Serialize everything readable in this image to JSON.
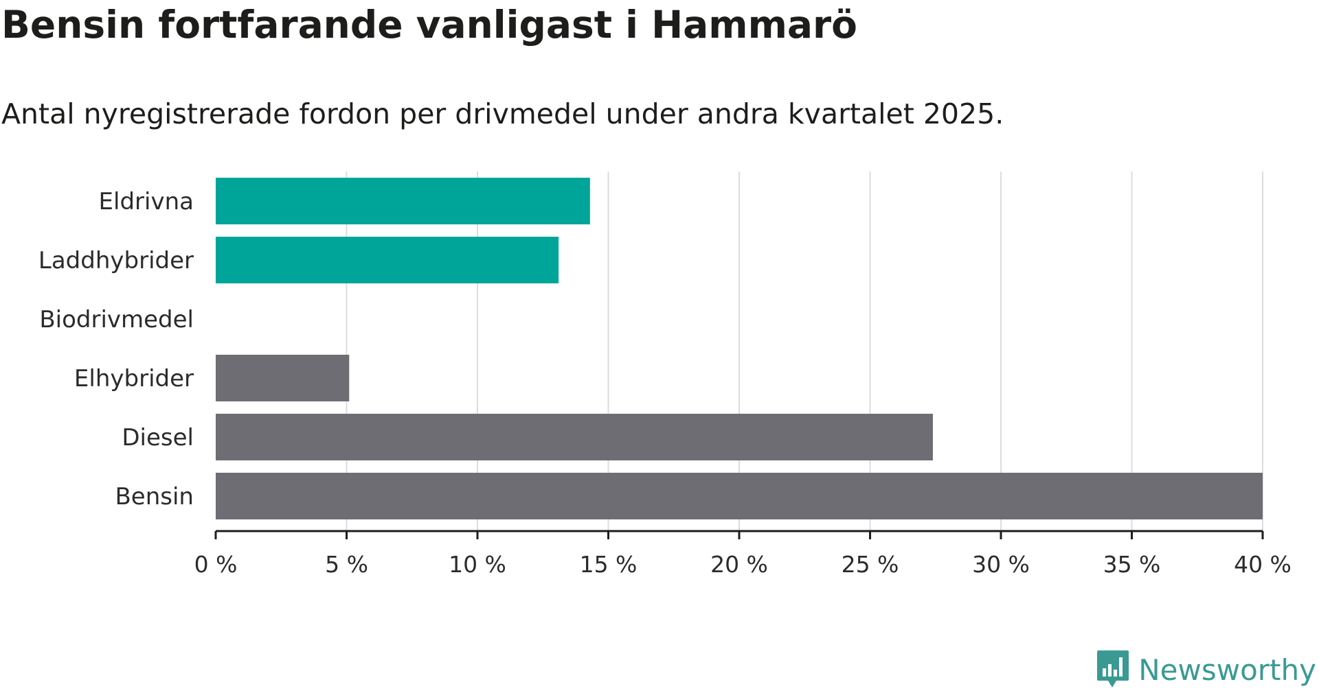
{
  "title": "Bensin fortfarande vanligast i Hammarö",
  "subtitle": "Antal nyregistrerade fordon per drivmedel under andra kvartalet 2025.",
  "brand": {
    "name": "Newsworthy",
    "color": "#3a9a93"
  },
  "colors": {
    "highlight": "#00a59a",
    "neutral": "#6e6d73",
    "grid": "#dcdcdc",
    "axis": "#1d1d1b"
  },
  "chart_data": {
    "type": "bar",
    "orientation": "horizontal",
    "categories": [
      "Eldrivna",
      "Laddhybrider",
      "Biodrivmedel",
      "Elhybrider",
      "Diesel",
      "Bensin"
    ],
    "values": [
      14.3,
      13.1,
      0,
      5.1,
      27.4,
      40.0
    ],
    "bar_colors": [
      "#00a59a",
      "#00a59a",
      "#00a59a",
      "#6e6d73",
      "#6e6d73",
      "#6e6d73"
    ],
    "xlim": [
      0,
      40
    ],
    "x_ticks": [
      0,
      5,
      10,
      15,
      20,
      25,
      30,
      35,
      40
    ],
    "x_tick_labels": [
      "0 %",
      "5 %",
      "10 %",
      "15 %",
      "20 %",
      "25 %",
      "30 %",
      "35 %",
      "40 %"
    ],
    "grid": "vertical",
    "legend": "none",
    "xlabel": "",
    "ylabel": ""
  }
}
